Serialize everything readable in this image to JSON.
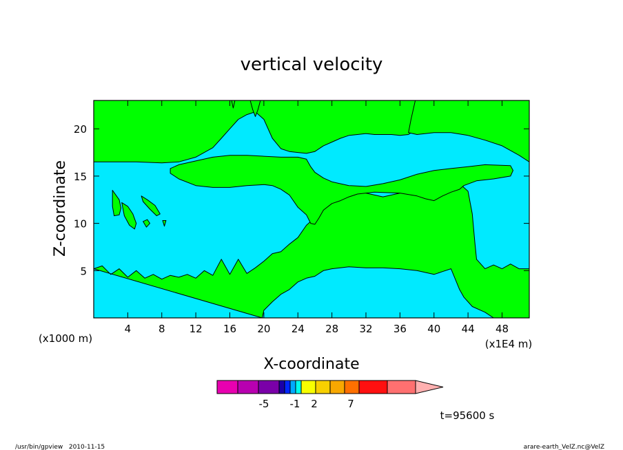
{
  "chart_data": {
    "type": "contour",
    "title": "vertical velocity",
    "xlabel": "X-coordinate",
    "ylabel": "Z-coordinate",
    "y_unit_label": "(x1000 m)",
    "x_unit_label": "(x1E4 m)",
    "xlim": [
      0,
      51.2
    ],
    "ylim": [
      0,
      23
    ],
    "x_ticks": [
      4,
      8,
      12,
      16,
      20,
      24,
      28,
      32,
      36,
      40,
      44,
      48
    ],
    "y_ticks": [
      5,
      10,
      15,
      20
    ],
    "x_tick_labels": [
      "4",
      "8",
      "12",
      "16",
      "20",
      "24",
      "28",
      "32",
      "36",
      "40",
      "44",
      "48"
    ],
    "y_tick_labels": [
      "5",
      "10",
      "15",
      "20"
    ],
    "background_color": "#00eaff",
    "fill_color": "#00ff00",
    "colorbar": {
      "colors": [
        "#e800b0",
        "#b800b0",
        "#7a00a8",
        "#1a00a8",
        "#0028ff",
        "#00aaff",
        "#00ffee",
        "#f8ff00",
        "#f8d000",
        "#f8a800",
        "#ff7000",
        "#ff1010",
        "#ff7070",
        "#ffb0b0"
      ],
      "labels": [
        "-5",
        "-1",
        "2",
        "7"
      ],
      "label_positions": [
        2,
        3,
        4,
        6
      ]
    },
    "time_label": "t=95600 s",
    "footer_left": "/usr/bin/gpview   2010-11-15",
    "footer_right": "arare-earth_VelZ.nc@VelZ",
    "regions": {
      "bottom_green": [
        [
          0,
          5.2
        ],
        [
          1,
          5.5
        ],
        [
          2,
          4.6
        ],
        [
          3,
          5.2
        ],
        [
          4,
          4.3
        ],
        [
          5,
          5.0
        ],
        [
          6,
          4.2
        ],
        [
          7,
          4.6
        ],
        [
          8,
          4.1
        ],
        [
          9,
          4.5
        ],
        [
          10,
          4.3
        ],
        [
          11,
          4.6
        ],
        [
          12,
          4.2
        ],
        [
          13,
          5.0
        ],
        [
          14,
          4.5
        ],
        [
          15,
          6.2
        ],
        [
          16,
          4.6
        ],
        [
          17,
          6.2
        ],
        [
          18,
          4.7
        ],
        [
          19,
          5.3
        ],
        [
          20,
          6.0
        ],
        [
          21,
          6.8
        ],
        [
          22,
          7.0
        ],
        [
          23,
          7.8
        ],
        [
          24,
          8.5
        ],
        [
          25,
          9.8
        ],
        [
          26,
          10.6
        ],
        [
          27,
          11.4
        ],
        [
          28,
          12.5
        ],
        [
          29,
          13.0
        ],
        [
          30,
          13.3
        ],
        [
          31,
          13.4
        ],
        [
          32,
          13.2
        ],
        [
          33,
          13.0
        ],
        [
          34,
          12.8
        ],
        [
          35,
          13.0
        ],
        [
          36,
          13.2
        ],
        [
          37,
          13.4
        ],
        [
          38,
          13.5
        ],
        [
          39,
          13.6
        ],
        [
          40,
          13.9
        ],
        [
          41,
          14.2
        ],
        [
          42,
          14.4
        ],
        [
          43,
          14.2
        ],
        [
          44,
          13.4
        ],
        [
          44.5,
          11.0
        ],
        [
          44.8,
          8.0
        ],
        [
          45,
          6.2
        ],
        [
          46,
          5.2
        ],
        [
          47,
          5.6
        ],
        [
          48,
          5.2
        ],
        [
          49,
          5.7
        ],
        [
          50,
          5.2
        ],
        [
          51.2,
          5.2
        ],
        [
          51.2,
          0
        ],
        [
          47,
          0
        ],
        [
          46,
          0.6
        ],
        [
          44.5,
          1.2
        ],
        [
          43.5,
          2.2
        ],
        [
          43,
          3.0
        ],
        [
          42,
          5.2
        ],
        [
          41,
          4.9
        ],
        [
          40,
          4.6
        ],
        [
          38,
          5.0
        ],
        [
          36,
          5.2
        ],
        [
          34,
          5.3
        ],
        [
          32,
          5.3
        ],
        [
          30,
          5.4
        ],
        [
          28,
          5.2
        ],
        [
          27,
          5.0
        ],
        [
          26,
          4.4
        ],
        [
          25,
          4.2
        ],
        [
          24,
          3.8
        ],
        [
          23,
          3.0
        ],
        [
          22,
          2.5
        ],
        [
          21,
          1.7
        ],
        [
          20,
          0.8
        ],
        [
          19.8,
          0
        ]
      ],
      "top_green": [
        [
          0,
          23
        ],
        [
          0,
          16.5
        ],
        [
          5,
          16.5
        ],
        [
          8,
          16.4
        ],
        [
          10,
          16.5
        ],
        [
          12,
          17.0
        ],
        [
          14,
          18.0
        ],
        [
          15,
          19.0
        ],
        [
          16,
          20.0
        ],
        [
          17,
          21.0
        ],
        [
          18,
          21.5
        ],
        [
          19,
          21.8
        ],
        [
          20,
          21.0
        ],
        [
          21,
          19.0
        ],
        [
          22,
          17.9
        ],
        [
          23,
          17.6
        ],
        [
          24,
          17.5
        ],
        [
          25,
          17.4
        ],
        [
          26,
          17.6
        ],
        [
          27,
          18.2
        ],
        [
          28,
          18.6
        ],
        [
          29,
          19.0
        ],
        [
          30,
          19.3
        ],
        [
          31,
          19.4
        ],
        [
          32,
          19.5
        ],
        [
          33,
          19.4
        ],
        [
          34,
          19.4
        ],
        [
          35,
          19.4
        ],
        [
          36,
          19.3
        ],
        [
          37,
          19.4
        ],
        [
          38,
          20.0
        ],
        [
          39,
          21.5
        ],
        [
          40,
          22.2
        ],
        [
          40.5,
          23
        ]
      ],
      "top_green_right": [
        [
          51.2,
          23
        ],
        [
          51.2,
          16.5
        ],
        [
          50,
          17.2
        ],
        [
          48,
          18.2
        ],
        [
          46,
          18.8
        ],
        [
          44,
          19.3
        ],
        [
          42,
          19.6
        ],
        [
          40,
          19.6
        ],
        [
          38,
          19.4
        ],
        [
          37,
          19.6
        ],
        [
          37.3,
          21.0
        ],
        [
          37.8,
          23
        ]
      ],
      "mid_band": [
        [
          9,
          15.8
        ],
        [
          10,
          16.2
        ],
        [
          12,
          16.6
        ],
        [
          14,
          17.0
        ],
        [
          16,
          17.2
        ],
        [
          18,
          17.2
        ],
        [
          20,
          17.1
        ],
        [
          22,
          17.0
        ],
        [
          24,
          17.0
        ],
        [
          25,
          16.8
        ],
        [
          25.5,
          16.0
        ],
        [
          26,
          15.4
        ],
        [
          27,
          14.8
        ],
        [
          28,
          14.4
        ],
        [
          30,
          14.0
        ],
        [
          32,
          13.9
        ],
        [
          34,
          14.2
        ],
        [
          36,
          14.6
        ],
        [
          38,
          15.2
        ],
        [
          40,
          15.6
        ],
        [
          42,
          15.8
        ],
        [
          44,
          16.0
        ],
        [
          46,
          16.2
        ],
        [
          49,
          16.1
        ],
        [
          49.3,
          15.6
        ],
        [
          49,
          15.0
        ],
        [
          47,
          14.7
        ],
        [
          45,
          14.5
        ],
        [
          43.5,
          14.0
        ],
        [
          43,
          13.6
        ],
        [
          42,
          13.3
        ],
        [
          41,
          12.9
        ],
        [
          40,
          12.4
        ],
        [
          39,
          12.6
        ],
        [
          38,
          12.9
        ],
        [
          36,
          13.2
        ],
        [
          33,
          13.3
        ],
        [
          31,
          13.1
        ],
        [
          30,
          12.8
        ],
        [
          29,
          12.4
        ],
        [
          28,
          12.1
        ],
        [
          27,
          11.4
        ],
        [
          26.5,
          10.6
        ],
        [
          26,
          9.9
        ],
        [
          25.5,
          10.0
        ],
        [
          25,
          10.9
        ],
        [
          24,
          11.7
        ],
        [
          23,
          13.0
        ],
        [
          22,
          13.6
        ],
        [
          21,
          14.0
        ],
        [
          20,
          14.1
        ],
        [
          18,
          14.0
        ],
        [
          16,
          13.8
        ],
        [
          14,
          13.8
        ],
        [
          12,
          14.0
        ],
        [
          10,
          14.7
        ],
        [
          9,
          15.3
        ]
      ],
      "blobs": [
        [
          [
            2.2,
            13.5
          ],
          [
            2.6,
            13.0
          ],
          [
            3.0,
            12.5
          ],
          [
            3.2,
            11.6
          ],
          [
            3.0,
            10.9
          ],
          [
            2.4,
            10.8
          ],
          [
            2.2,
            11.8
          ]
        ],
        [
          [
            3.3,
            12.2
          ],
          [
            4.0,
            11.8
          ],
          [
            4.6,
            11.0
          ],
          [
            5.0,
            10.0
          ],
          [
            4.8,
            9.4
          ],
          [
            4.2,
            9.8
          ],
          [
            3.6,
            10.8
          ]
        ],
        [
          [
            5.6,
            12.9
          ],
          [
            6.3,
            12.5
          ],
          [
            7.2,
            11.9
          ],
          [
            7.8,
            11.0
          ],
          [
            7.4,
            10.8
          ],
          [
            6.6,
            11.5
          ],
          [
            5.8,
            12.3
          ]
        ],
        [
          [
            5.8,
            10.2
          ],
          [
            6.3,
            10.4
          ],
          [
            6.6,
            10.0
          ],
          [
            6.2,
            9.6
          ]
        ],
        [
          [
            8.1,
            10.3
          ],
          [
            8.5,
            10.3
          ],
          [
            8.3,
            9.7
          ]
        ],
        [
          [
            18.4,
            23
          ],
          [
            18.7,
            22.0
          ],
          [
            19.0,
            21.3
          ],
          [
            19.3,
            22.0
          ],
          [
            19.6,
            23
          ]
        ],
        [
          [
            16.2,
            23
          ],
          [
            16.4,
            22.2
          ],
          [
            16.6,
            23
          ]
        ]
      ]
    }
  }
}
